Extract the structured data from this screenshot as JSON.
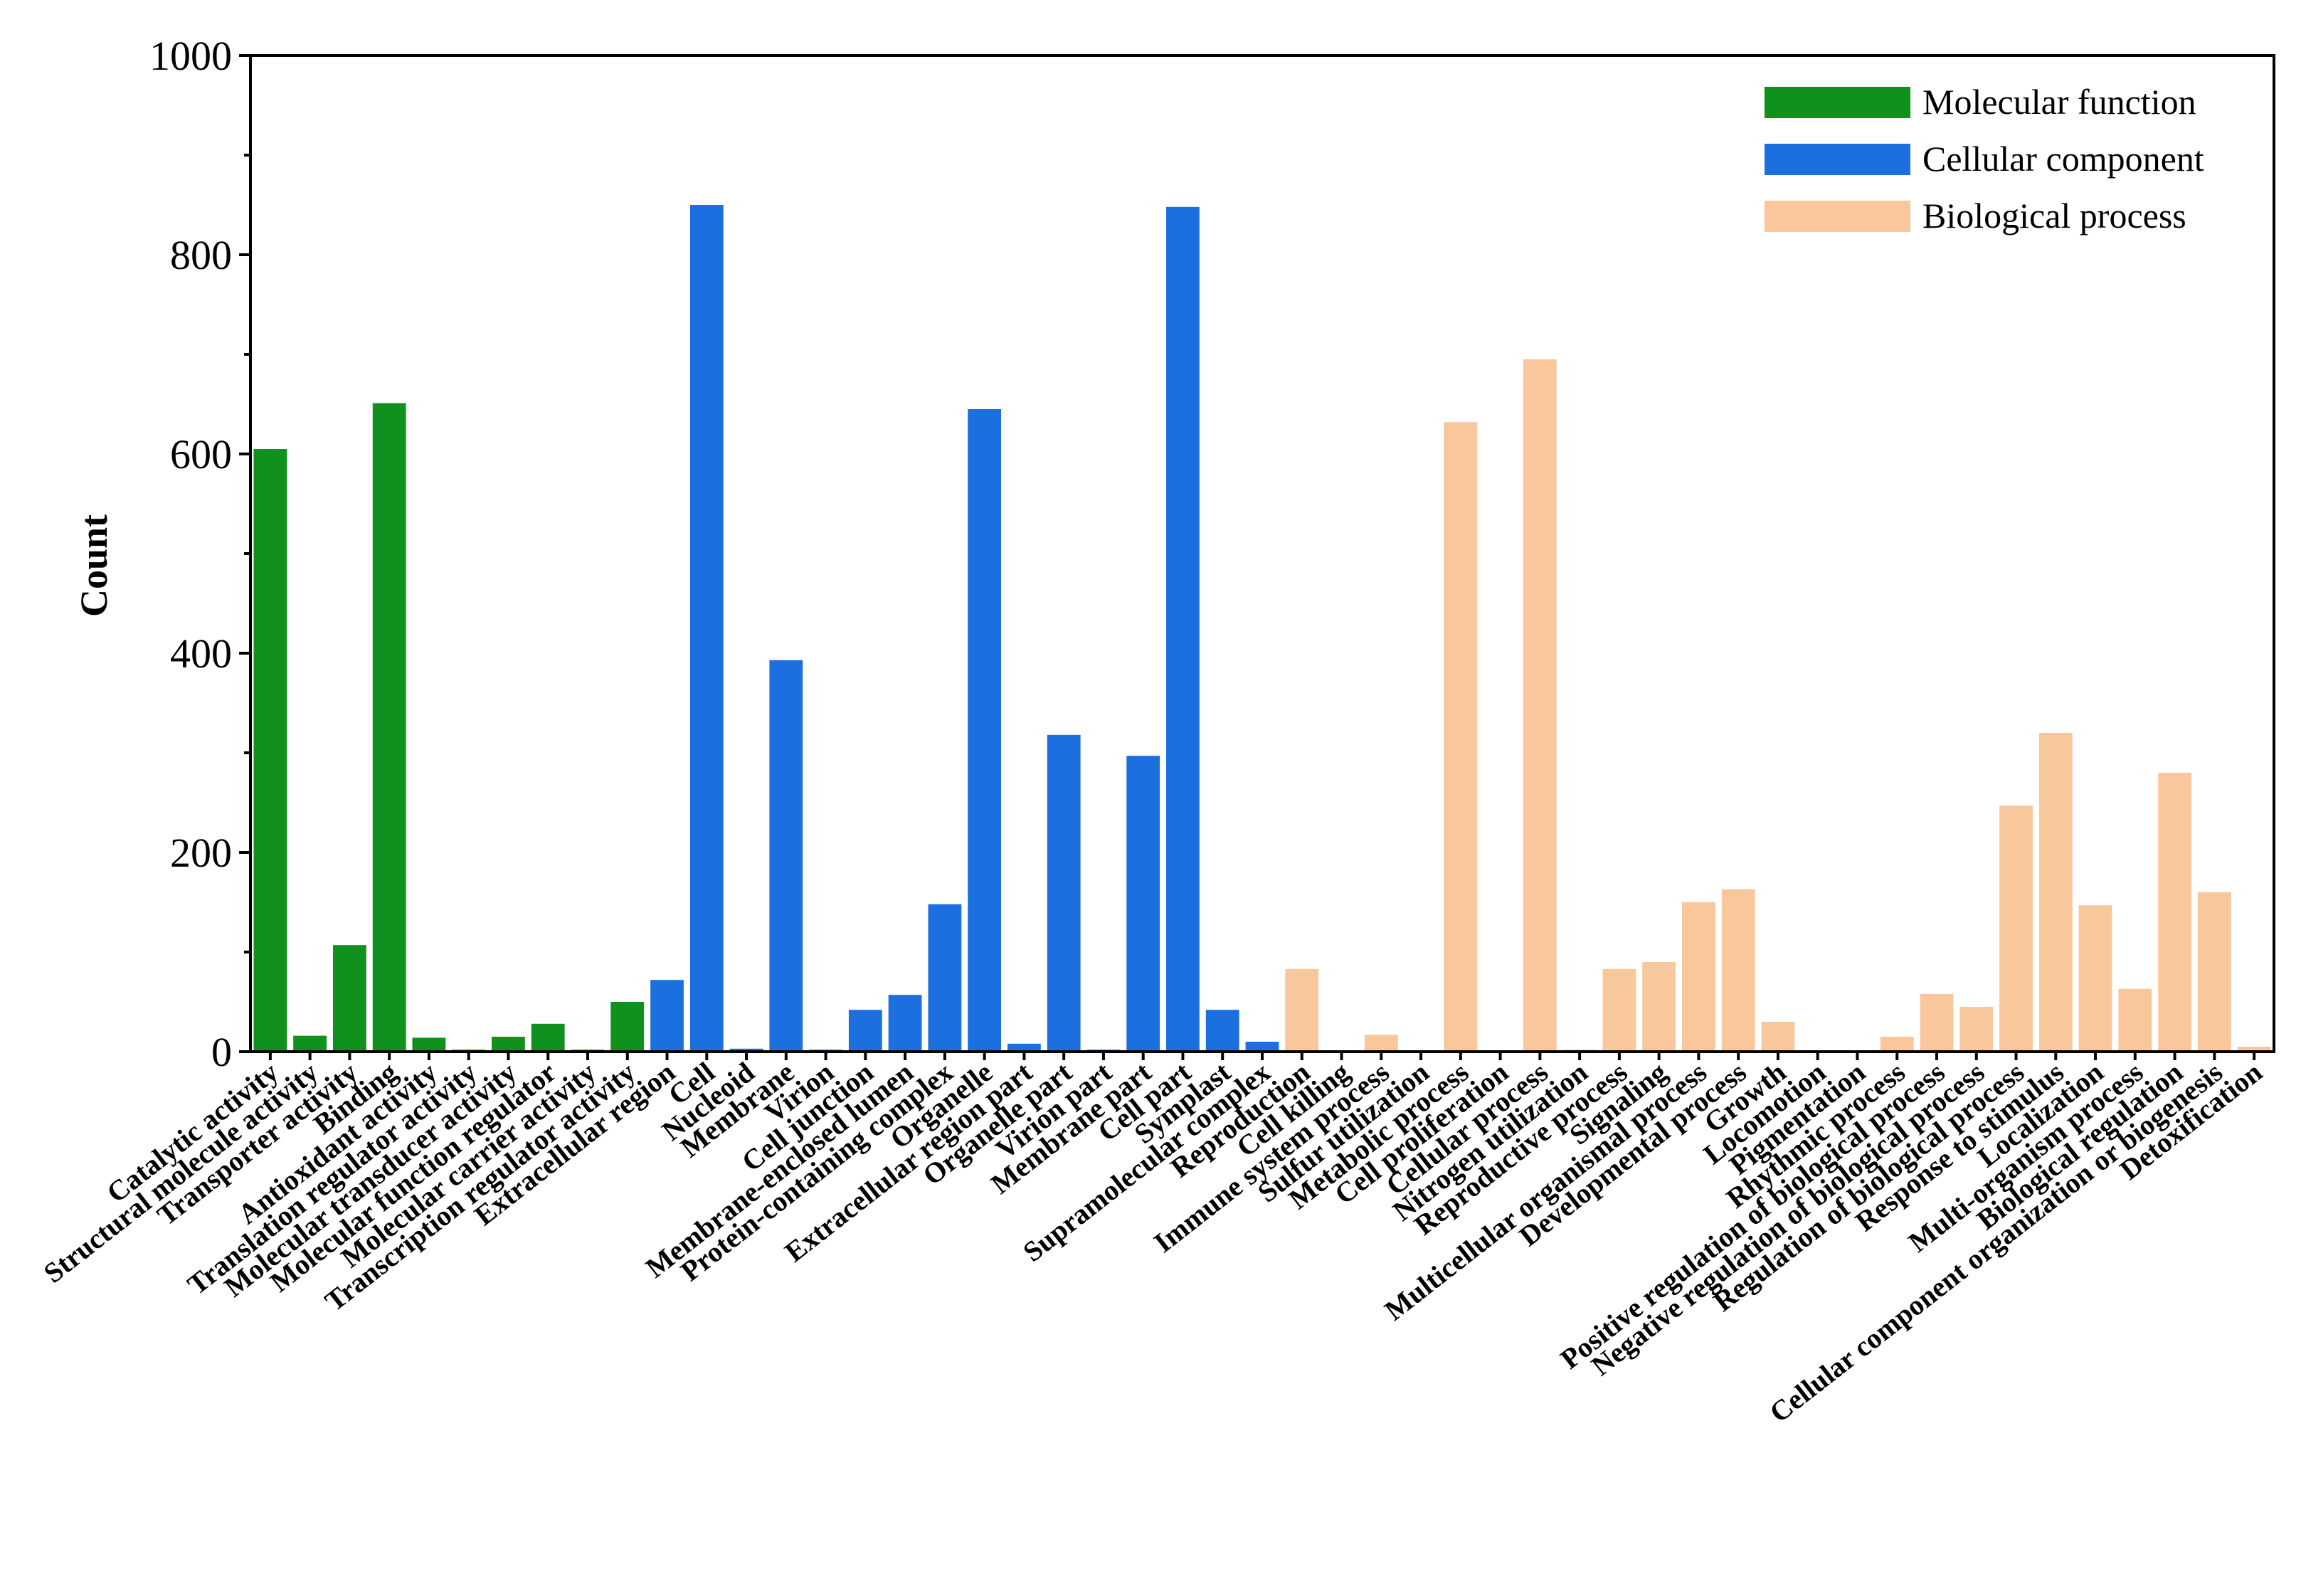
{
  "chart_data": {
    "type": "bar",
    "title": "",
    "xlabel": "",
    "ylabel": "Count",
    "ylim": [
      0,
      1000
    ],
    "yticks": [
      0,
      200,
      400,
      600,
      800,
      1000
    ],
    "legend_position": "top-right",
    "series": [
      {
        "name": "Molecular function",
        "color": "#10901c"
      },
      {
        "name": "Cellular component",
        "color": "#1c6fdf"
      },
      {
        "name": "Biological process",
        "color": "#f8c89c"
      }
    ],
    "categories": [
      "Catalytic activity",
      "Structural molecule activity",
      "Transporter activity",
      "Binding",
      "Antioxidant activity",
      "Translation regulator activity",
      "Molecular transducer activity",
      "Molecular function regulator",
      "Molecular carrier activity",
      "Transcription regulator activity",
      "Extracellular region",
      "Cell",
      "Nucleoid",
      "Membrane",
      "Virion",
      "Cell junction",
      "Membrane-enclosed lumen",
      "Protein-containing complex",
      "Organelle",
      "Extracellular region part",
      "Organelle part",
      "Virion part",
      "Membrane part",
      "Cell part",
      "Symplast",
      "Supramolecular complex",
      "Reproduction",
      "Cell killing",
      "Immune system process",
      "Sulfur utilization",
      "Metabolic process",
      "Cell proliferation",
      "Cellular process",
      "Nitrogen utilization",
      "Reproductive process",
      "Signaling",
      "Multicellular organismal process",
      "Developmental process",
      "Growth",
      "Locomotion",
      "Pigmentation",
      "Rhythmic process",
      "Positive regulation of biological process",
      "Negative regulation of biological process",
      "Regulation of biological process",
      "Response to stimulus",
      "Localization",
      "Multi-organism process",
      "Biological regulation",
      "Cellular component organization or biogenesis",
      "Detoxification"
    ],
    "values": [
      605,
      16,
      107,
      651,
      14,
      2,
      15,
      28,
      2,
      50,
      72,
      850,
      3,
      393,
      2,
      42,
      57,
      148,
      645,
      8,
      318,
      2,
      297,
      848,
      42,
      10,
      83,
      1,
      17,
      1,
      632,
      1,
      695,
      2,
      83,
      90,
      150,
      163,
      30,
      1,
      1,
      15,
      58,
      45,
      247,
      320,
      147,
      63,
      280,
      160,
      5
    ],
    "group": [
      0,
      0,
      0,
      0,
      0,
      0,
      0,
      0,
      0,
      0,
      1,
      1,
      1,
      1,
      1,
      1,
      1,
      1,
      1,
      1,
      1,
      1,
      1,
      1,
      1,
      1,
      2,
      2,
      2,
      2,
      2,
      2,
      2,
      2,
      2,
      2,
      2,
      2,
      2,
      2,
      2,
      2,
      2,
      2,
      2,
      2,
      2,
      2,
      2,
      2,
      2
    ]
  }
}
